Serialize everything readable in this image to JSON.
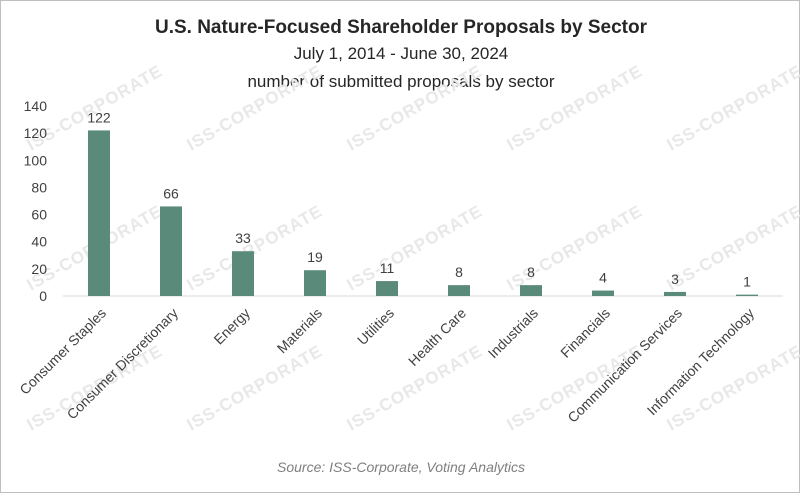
{
  "chart_data": {
    "type": "bar",
    "title": "U.S. Nature-Focused Shareholder Proposals by Sector",
    "subtitle": "July 1, 2014 - June 30, 2024",
    "subtitle2": "number of submitted proposals by sector",
    "categories": [
      "Consumer Staples",
      "Consumer Discretionary",
      "Energy",
      "Materials",
      "Utilities",
      "Health Care",
      "Industrials",
      "Financials",
      "Communication Services",
      "Information Technology"
    ],
    "values": [
      122,
      66,
      33,
      19,
      11,
      8,
      8,
      4,
      3,
      1
    ],
    "ylim": [
      0,
      140
    ],
    "yticks": [
      0,
      20,
      40,
      60,
      80,
      100,
      120,
      140
    ],
    "xlabel": "",
    "ylabel": "",
    "bar_color": "#5a8a7a",
    "source": "Source: ISS-Corporate, Voting Analytics",
    "watermark": "ISS-CORPORATE"
  }
}
